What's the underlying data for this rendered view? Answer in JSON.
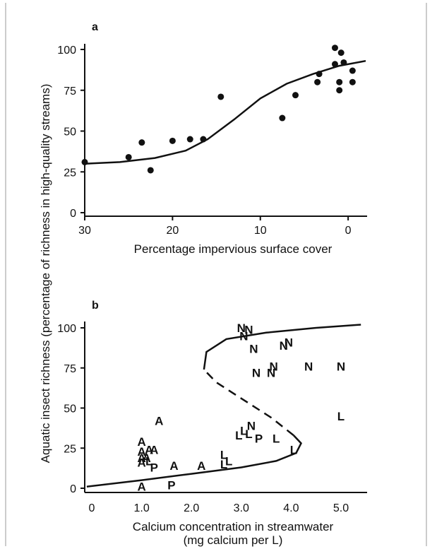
{
  "y_axis_title": "Aquatic insect richness (percentage of richness in high-quality streams)",
  "chart_data": [
    {
      "panel": "a",
      "type": "scatter",
      "xlabel": "Percentage impervious surface cover",
      "xlim": [
        30,
        -2
      ],
      "ylim": [
        0,
        105
      ],
      "x_ticks": [
        30,
        20,
        10,
        0
      ],
      "y_ticks": [
        0,
        25,
        50,
        75,
        100
      ],
      "grid": false,
      "points": [
        {
          "x": 30,
          "y": 31
        },
        {
          "x": 25,
          "y": 34
        },
        {
          "x": 23.5,
          "y": 43
        },
        {
          "x": 22.5,
          "y": 26
        },
        {
          "x": 20,
          "y": 44
        },
        {
          "x": 18,
          "y": 45
        },
        {
          "x": 16.5,
          "y": 45
        },
        {
          "x": 14.5,
          "y": 71
        },
        {
          "x": 7.5,
          "y": 58
        },
        {
          "x": 6,
          "y": 72
        },
        {
          "x": 3.5,
          "y": 80
        },
        {
          "x": 3.3,
          "y": 85
        },
        {
          "x": 1.5,
          "y": 101
        },
        {
          "x": 1.5,
          "y": 91
        },
        {
          "x": 1,
          "y": 80
        },
        {
          "x": 1,
          "y": 75
        },
        {
          "x": 0.8,
          "y": 98
        },
        {
          "x": 0.5,
          "y": 92
        },
        {
          "x": -0.5,
          "y": 87
        },
        {
          "x": -0.5,
          "y": 80
        }
      ],
      "fit_curve": [
        [
          30,
          30
        ],
        [
          26,
          31
        ],
        [
          22,
          33.5
        ],
        [
          18.5,
          38
        ],
        [
          16,
          45
        ],
        [
          13,
          57
        ],
        [
          10,
          70
        ],
        [
          7,
          79
        ],
        [
          4,
          85
        ],
        [
          1,
          90
        ],
        [
          -2,
          93
        ]
      ]
    },
    {
      "panel": "b",
      "type": "scatter",
      "xlabel": "Calcium concentration in streamwater",
      "xlabel2": "(mg calcium per L)",
      "xlim": [
        -0.1,
        5.4
      ],
      "ylim": [
        0,
        105
      ],
      "x_ticks": [
        "0",
        "1.0",
        "2.0",
        "3.0",
        "4.0",
        "5.0"
      ],
      "y_ticks": [
        0,
        25,
        50,
        75,
        100
      ],
      "grid": false,
      "points": [
        {
          "x": 1.0,
          "y": 1,
          "label": "A"
        },
        {
          "x": 1.6,
          "y": 2,
          "label": "P"
        },
        {
          "x": 1.0,
          "y": 16,
          "label": "A"
        },
        {
          "x": 1.0,
          "y": 19,
          "label": "A"
        },
        {
          "x": 1.0,
          "y": 23,
          "label": "A"
        },
        {
          "x": 1.0,
          "y": 29,
          "label": "A"
        },
        {
          "x": 1.1,
          "y": 19,
          "label": "A"
        },
        {
          "x": 1.15,
          "y": 24,
          "label": "A"
        },
        {
          "x": 1.15,
          "y": 17,
          "label": "L"
        },
        {
          "x": 1.25,
          "y": 24,
          "label": "A"
        },
        {
          "x": 1.25,
          "y": 13,
          "label": "P"
        },
        {
          "x": 1.35,
          "y": 42,
          "label": "A"
        },
        {
          "x": 1.65,
          "y": 14,
          "label": "A"
        },
        {
          "x": 2.2,
          "y": 14,
          "label": "A"
        },
        {
          "x": 2.65,
          "y": 15,
          "label": "L"
        },
        {
          "x": 2.75,
          "y": 17,
          "label": "L"
        },
        {
          "x": 2.65,
          "y": 21,
          "label": "L"
        },
        {
          "x": 2.95,
          "y": 33,
          "label": "L"
        },
        {
          "x": 3.05,
          "y": 36,
          "label": "L"
        },
        {
          "x": 3.15,
          "y": 34,
          "label": "L"
        },
        {
          "x": 3.2,
          "y": 39,
          "label": "N"
        },
        {
          "x": 3.35,
          "y": 31,
          "label": "P"
        },
        {
          "x": 3.7,
          "y": 31,
          "label": "L"
        },
        {
          "x": 4.05,
          "y": 24,
          "label": "L"
        },
        {
          "x": 5.0,
          "y": 45,
          "label": "L"
        },
        {
          "x": 3.0,
          "y": 100,
          "label": "N"
        },
        {
          "x": 3.15,
          "y": 99,
          "label": "N"
        },
        {
          "x": 3.05,
          "y": 95,
          "label": "N"
        },
        {
          "x": 3.25,
          "y": 87,
          "label": "N"
        },
        {
          "x": 3.85,
          "y": 89,
          "label": "N"
        },
        {
          "x": 3.95,
          "y": 91,
          "label": "N"
        },
        {
          "x": 3.3,
          "y": 72,
          "label": "N"
        },
        {
          "x": 3.6,
          "y": 72,
          "label": "N"
        },
        {
          "x": 3.65,
          "y": 76,
          "label": "N"
        },
        {
          "x": 4.35,
          "y": 76,
          "label": "N"
        },
        {
          "x": 5.0,
          "y": 76,
          "label": "N"
        }
      ],
      "lower_branch": [
        [
          -0.1,
          1
        ],
        [
          1,
          5
        ],
        [
          2,
          9
        ],
        [
          3,
          13
        ],
        [
          3.7,
          17
        ],
        [
          4.1,
          22
        ],
        [
          4.2,
          28
        ],
        [
          4.05,
          33
        ]
      ],
      "unstable_branch": [
        [
          4.05,
          33
        ],
        [
          3.6,
          44
        ],
        [
          3.0,
          56
        ],
        [
          2.5,
          66
        ],
        [
          2.25,
          74
        ]
      ],
      "upper_branch": [
        [
          2.25,
          74
        ],
        [
          2.3,
          85
        ],
        [
          2.7,
          93
        ],
        [
          3.5,
          97
        ],
        [
          4.5,
          100
        ],
        [
          5.4,
          102
        ]
      ]
    }
  ]
}
